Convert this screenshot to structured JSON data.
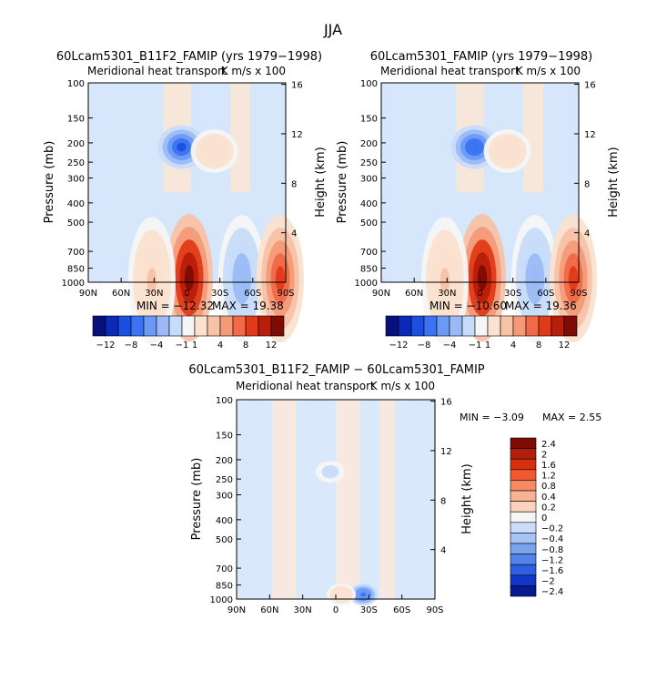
{
  "title": "JJA",
  "chart_data": [
    {
      "id": "p1",
      "type": "heatmap",
      "title": "60Lcam5301_B11F2_FAMIP (yrs 1979−1998)",
      "subtitle_left": "Meridional heat transport",
      "subtitle_right": "K m/s x 100",
      "ylabel": "Pressure (mb)",
      "ylabel_right": "Height (km)",
      "x_ticks": [
        "90N",
        "60N",
        "30N",
        "0",
        "30S",
        "60S",
        "90S"
      ],
      "x_range": [
        90,
        -90
      ],
      "y_ticks": [
        100,
        150,
        200,
        250,
        300,
        400,
        500,
        700,
        850,
        1000
      ],
      "ylim": [
        100,
        1000
      ],
      "height_ticks": [
        16,
        12,
        8,
        4
      ],
      "min_label": "MIN = −12.32",
      "max_label": "MAX = 19.38",
      "min": -12.32,
      "max": 19.38,
      "colorbar_labels": [
        "−12",
        "−8",
        "−4",
        "−1",
        "1",
        "4",
        "8",
        "12"
      ],
      "features": [
        {
          "lat": 5,
          "p": 210,
          "v": -10
        },
        {
          "lat": -25,
          "p": 220,
          "v": 2.5
        },
        {
          "lat": -2,
          "p": 950,
          "v": 16
        },
        {
          "lat": 32,
          "p": 980,
          "v": 3
        },
        {
          "lat": -50,
          "p": 960,
          "v": -5
        },
        {
          "lat": -85,
          "p": 960,
          "v": 10
        }
      ]
    },
    {
      "id": "p2",
      "type": "heatmap",
      "title": "60Lcam5301_FAMIP (yrs 1979−1998)",
      "subtitle_left": "Meridional heat transport",
      "subtitle_right": "K m/s x 100",
      "ylabel": "Pressure (mb)",
      "ylabel_right": "Height (km)",
      "x_ticks": [
        "90N",
        "60N",
        "30N",
        "0",
        "30S",
        "60S",
        "90S"
      ],
      "x_range": [
        90,
        -90
      ],
      "y_ticks": [
        100,
        150,
        200,
        250,
        300,
        400,
        500,
        700,
        850,
        1000
      ],
      "ylim": [
        100,
        1000
      ],
      "height_ticks": [
        16,
        12,
        8,
        4
      ],
      "min_label": "MIN = −10.60",
      "max_label": "MAX = 19.36",
      "min": -10.6,
      "max": 19.36,
      "colorbar_labels": [
        "−12",
        "−8",
        "−4",
        "−1",
        "1",
        "4",
        "8",
        "12"
      ],
      "features": [
        {
          "lat": 5,
          "p": 210,
          "v": -9
        },
        {
          "lat": -25,
          "p": 220,
          "v": 2.5
        },
        {
          "lat": -2,
          "p": 950,
          "v": 16
        },
        {
          "lat": 32,
          "p": 980,
          "v": 3
        },
        {
          "lat": -50,
          "p": 960,
          "v": -5
        },
        {
          "lat": -85,
          "p": 960,
          "v": 10
        }
      ]
    },
    {
      "id": "p3",
      "type": "heatmap",
      "title": "60Lcam5301_B11F2_FAMIP − 60Lcam5301_FAMIP",
      "subtitle_left": "Meridional heat transport",
      "subtitle_right": "K m/s x 100",
      "ylabel": "Pressure (mb)",
      "ylabel_right": "Height (km)",
      "x_ticks": [
        "90N",
        "60N",
        "30N",
        "0",
        "30S",
        "60S",
        "90S"
      ],
      "x_range": [
        90,
        -90
      ],
      "y_ticks": [
        100,
        150,
        200,
        250,
        300,
        400,
        500,
        700,
        850,
        1000
      ],
      "ylim": [
        100,
        1000
      ],
      "height_ticks": [
        16,
        12,
        8,
        4
      ],
      "min_label": "MIN =  −3.09",
      "max_label": "MAX =   2.55",
      "min": -3.09,
      "max": 2.55,
      "colorbar_labels": [
        "2.4",
        "2",
        "1.6",
        "1.2",
        "0.8",
        "0.4",
        "0.2",
        "0",
        "−0.2",
        "−0.4",
        "−0.8",
        "−1.2",
        "−1.6",
        "−2",
        "−2.4"
      ],
      "features": [
        {
          "lat": 5,
          "p": 230,
          "v": -0.4
        },
        {
          "lat": -25,
          "p": 950,
          "v": -1.5
        },
        {
          "lat": -5,
          "p": 950,
          "v": 0.5
        }
      ]
    }
  ],
  "palette_horizontal": [
    "#08107a",
    "#0b2ab8",
    "#1a4fe0",
    "#3c73f0",
    "#6a9af5",
    "#9bbaf5",
    "#c7dcfa",
    "#f5f5f5",
    "#fbe2d0",
    "#f7c2a6",
    "#f49a78",
    "#f06a48",
    "#e03a18",
    "#b81e0a",
    "#7d0c04"
  ],
  "palette_vertical": [
    "#7d0c04",
    "#b01e0c",
    "#d8300f",
    "#f05830",
    "#f58a63",
    "#f7b394",
    "#fad3bd",
    "#f5f5f5",
    "#c9dcf8",
    "#a7c3f3",
    "#7ca3ef",
    "#5282ec",
    "#2e5fe3",
    "#1236c8",
    "#071a8f"
  ]
}
